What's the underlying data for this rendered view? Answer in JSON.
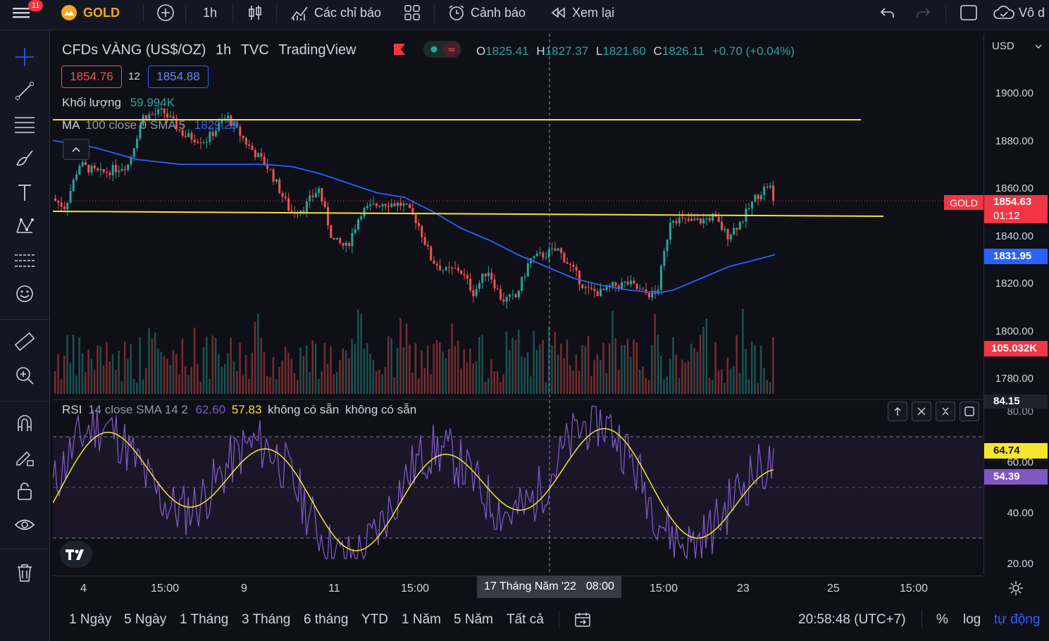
{
  "topbar": {
    "menu_badge": "11",
    "symbol": "GOLD",
    "interval": "1h",
    "indicators_label": "Các chỉ báo",
    "alerts_label": "Cảnh báo",
    "replay_label": "Xem lại",
    "right_label": "Vô d"
  },
  "legend": {
    "title": "CFDs VÀNG (US$/OZ)",
    "interval": "1h",
    "exchange": "TVC",
    "source": "TradingView",
    "o_label": "O",
    "o": "1825.41",
    "h_label": "H",
    "h": "1827.37",
    "l_label": "L",
    "l": "1821.60",
    "c_label": "C",
    "c": "1826.11",
    "change": "+0.70 (+0.04%)",
    "sell": "1854.76",
    "spread": "12",
    "buy": "1854.88",
    "volume_label": "Khối lượng",
    "volume_value": "59.994K",
    "ma_label": "MA",
    "ma_params": "100 close 0 SMA 5",
    "ma_value": "1829.29"
  },
  "rsi_legend": {
    "label": "RSI",
    "params": "14 close SMA 14 2",
    "value1": "62.60",
    "value2": "57.83",
    "na1": "không có sẵn",
    "na2": "không có sẵn"
  },
  "price_axis": {
    "currency": "USD",
    "labels": [
      "1900.00",
      "1880.00",
      "1860.00",
      "1840.00",
      "1820.00",
      "1800.00",
      "1780.00"
    ],
    "gold_tag": "GOLD",
    "gold_price": "1854.63",
    "gold_countdown": "01:12",
    "ma_tag": "1831.95",
    "volume_tag": "105.032K",
    "rsi_top": "84.15",
    "rsi_labels": [
      "80.00",
      "60.00",
      "40.00",
      "20.00"
    ],
    "rsi_tag1": "64.74",
    "rsi_tag2": "54.39"
  },
  "time_axis": {
    "labels": [
      "4",
      "15:00",
      "9",
      "11",
      "15:00",
      "15:00",
      "23",
      "25",
      "15:00"
    ],
    "crosshair": "17 Tháng Năm '22",
    "crosshair_time": "08:00"
  },
  "bottombar": {
    "ranges": [
      "1 Ngày",
      "5 Ngày",
      "1 Tháng",
      "3 Tháng",
      "6 tháng",
      "YTD",
      "1 Năm",
      "5 Năm",
      "Tất cả"
    ],
    "clock": "20:58:48 (UTC+7)",
    "percent": "%",
    "log": "log",
    "auto": "tự động"
  },
  "colors": {
    "up": "#26a69a",
    "down": "#ef5350",
    "ma": "#2962ff",
    "hline": "#f5e52f",
    "rsi": "#7e57c2",
    "rsi_ma": "#f5e52f"
  }
}
